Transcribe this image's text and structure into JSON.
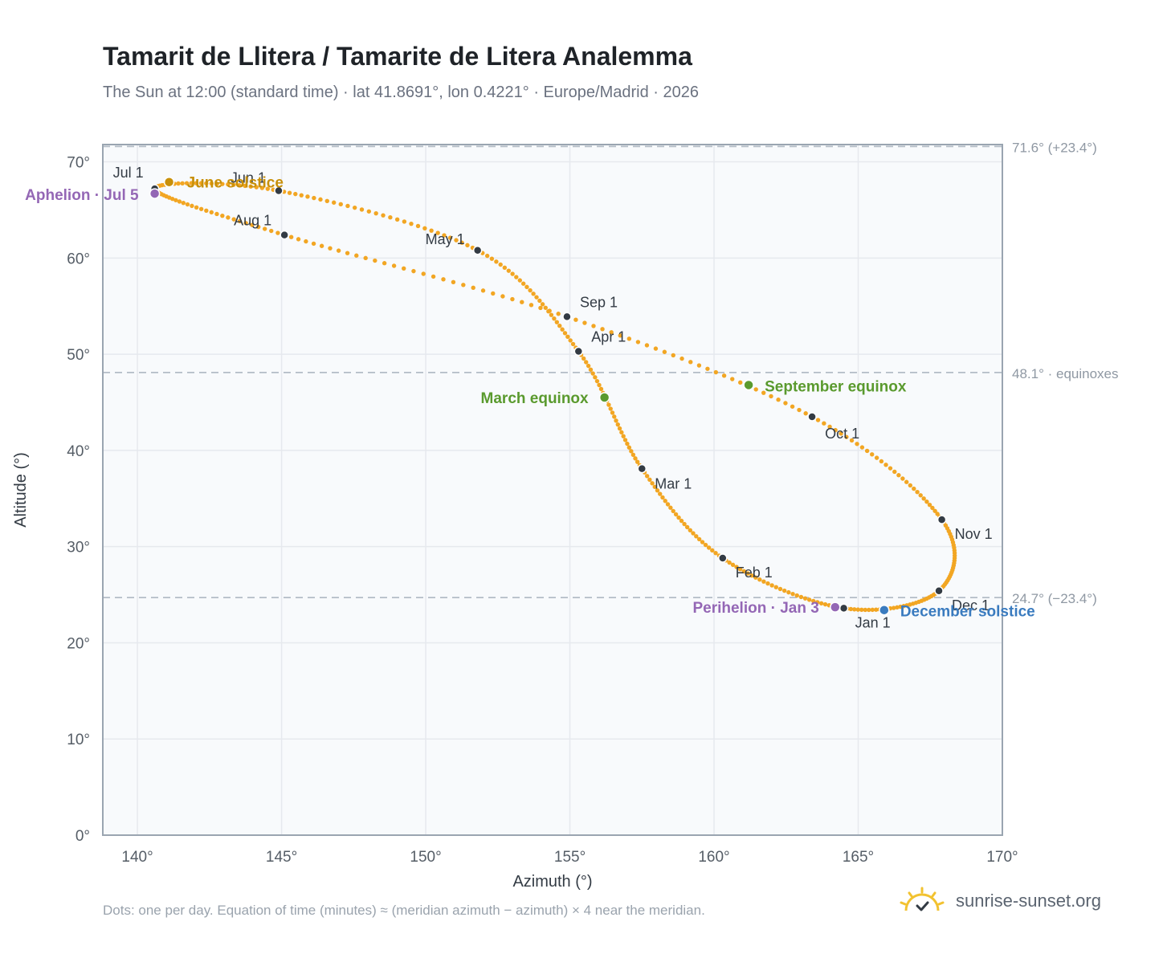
{
  "title": "Tamarit de Llitera / Tamarite de Litera Analemma",
  "subtitle": "The Sun at 12:00 (standard time) · lat 41.8691°, lon 0.4221° · Europe/Madrid · 2026",
  "footer_note": "Dots: one per day. Equation of time (minutes) ≈ (meridian azimuth − azimuth) × 4 near the meridian.",
  "brand": "sunrise-sunset.org",
  "colors": {
    "curve": "#f2a623",
    "month_marker": "#333b44",
    "equinox": "#5a9a2e",
    "june_solstice": "#c8900a",
    "december_solstice": "#3a7bbf",
    "apsis": "#9467b5",
    "reference_line": "#b3bcc6",
    "grid": "#e6e9ee",
    "plot_bg": "#f8fafc",
    "axis": "#9aa5b1"
  },
  "chart_data": {
    "type": "scatter",
    "title": "Tamarit de Llitera / Tamarite de Litera Analemma",
    "xlabel": "Azimuth (°)",
    "ylabel": "Altitude (°)",
    "xlim": [
      138.8,
      170
    ],
    "ylim": [
      0,
      71.8
    ],
    "xticks": [
      140,
      145,
      150,
      155,
      160,
      165,
      170
    ],
    "yticks": [
      0,
      10,
      20,
      30,
      40,
      50,
      60,
      70
    ],
    "grid": true,
    "series_description": "one dot per day",
    "month_markers": [
      {
        "label": "Jan 1",
        "x": 164.5,
        "y": 23.6
      },
      {
        "label": "Feb 1",
        "x": 160.3,
        "y": 28.8
      },
      {
        "label": "Mar 1",
        "x": 157.5,
        "y": 38.1
      },
      {
        "label": "Apr 1",
        "x": 155.3,
        "y": 50.3
      },
      {
        "label": "May 1",
        "x": 151.8,
        "y": 60.8
      },
      {
        "label": "Jun 1",
        "x": 144.9,
        "y": 67.0
      },
      {
        "label": "Jul 1",
        "x": 140.6,
        "y": 67.2
      },
      {
        "label": "Aug 1",
        "x": 145.1,
        "y": 62.4
      },
      {
        "label": "Sep 1",
        "x": 154.9,
        "y": 53.9
      },
      {
        "label": "Oct 1",
        "x": 163.4,
        "y": 43.5
      },
      {
        "label": "Nov 1",
        "x": 167.9,
        "y": 32.8
      },
      {
        "label": "Dec 1",
        "x": 167.8,
        "y": 25.4
      }
    ],
    "events": [
      {
        "label": "June solstice",
        "x": 141.1,
        "y": 67.9,
        "kind": "june_solstice"
      },
      {
        "label": "December solstice",
        "x": 165.9,
        "y": 23.4,
        "kind": "december_solstice"
      },
      {
        "label": "March equinox",
        "x": 156.2,
        "y": 45.5,
        "kind": "equinox"
      },
      {
        "label": "September equinox",
        "x": 161.2,
        "y": 46.8,
        "kind": "equinox"
      },
      {
        "label": "Aphelion · Jul 5",
        "x": 140.6,
        "y": 66.7,
        "kind": "apsis"
      },
      {
        "label": "Perihelion · Jan 3",
        "x": 164.2,
        "y": 23.7,
        "kind": "apsis"
      }
    ],
    "reference_lines": [
      {
        "y": 71.6,
        "label": "71.6° (+23.4°)"
      },
      {
        "y": 48.1,
        "label": "48.1° · equinoxes"
      },
      {
        "y": 24.7,
        "label": "24.7° (−23.4°)"
      }
    ]
  }
}
